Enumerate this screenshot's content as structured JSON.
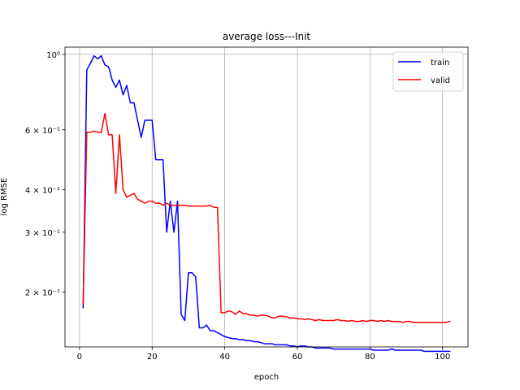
{
  "chart_data": {
    "type": "line",
    "title": "average loss---Init",
    "xlabel": "epoch",
    "ylabel": "log RMSE",
    "yscale": "log",
    "xlim": [
      -4,
      107
    ],
    "ylim": [
      0.138,
      1.05
    ],
    "grid": "vertical and horizontal at major ticks",
    "legend_position": "top-right",
    "xticks": [
      0,
      20,
      40,
      60,
      80,
      100
    ],
    "xtick_labels": [
      "0",
      "20",
      "40",
      "60",
      "80",
      "100"
    ],
    "yticks": [
      0.2,
      0.3,
      0.4,
      0.6,
      1.0
    ],
    "ytick_labels": [
      "2 × 10⁻¹",
      "3 × 10⁻¹",
      "4 × 10⁻¹",
      "6 × 10⁻¹",
      "10⁰"
    ],
    "series": [
      {
        "name": "train",
        "color": "#0000ff",
        "x": [
          1,
          2,
          3,
          4,
          5,
          6,
          7,
          8,
          9,
          10,
          11,
          12,
          13,
          14,
          15,
          16,
          17,
          18,
          19,
          20,
          21,
          22,
          23,
          24,
          25,
          26,
          27,
          28,
          29,
          30,
          31,
          32,
          33,
          34,
          35,
          36,
          37,
          38,
          39,
          40,
          41,
          42,
          43,
          44,
          45,
          46,
          47,
          48,
          49,
          50,
          51,
          52,
          53,
          54,
          55,
          56,
          57,
          58,
          59,
          60,
          61,
          62,
          63,
          64,
          65,
          66,
          67,
          68,
          69,
          70,
          71,
          72,
          73,
          74,
          75,
          76,
          77,
          78,
          79,
          80,
          81,
          82,
          83,
          84,
          85,
          86,
          87,
          88,
          89,
          90,
          91,
          92,
          93,
          94,
          95,
          96,
          97,
          98,
          99,
          100,
          101,
          102
        ],
        "y": [
          0.18,
          0.9,
          0.94,
          0.99,
          0.97,
          0.99,
          0.93,
          0.92,
          0.84,
          0.8,
          0.84,
          0.76,
          0.81,
          0.72,
          0.72,
          0.64,
          0.57,
          0.64,
          0.64,
          0.64,
          0.49,
          0.49,
          0.49,
          0.3,
          0.37,
          0.3,
          0.37,
          0.172,
          0.165,
          0.228,
          0.228,
          0.222,
          0.157,
          0.157,
          0.16,
          0.154,
          0.154,
          0.152,
          0.15,
          0.148,
          0.147,
          0.146,
          0.146,
          0.145,
          0.145,
          0.144,
          0.144,
          0.143,
          0.143,
          0.142,
          0.141,
          0.141,
          0.141,
          0.14,
          0.14,
          0.14,
          0.14,
          0.139,
          0.139,
          0.138,
          0.139,
          0.139,
          0.138,
          0.138,
          0.137,
          0.137,
          0.137,
          0.137,
          0.137,
          0.136,
          0.136,
          0.136,
          0.136,
          0.136,
          0.136,
          0.136,
          0.136,
          0.136,
          0.136,
          0.136,
          0.135,
          0.135,
          0.135,
          0.135,
          0.135,
          0.136,
          0.135,
          0.135,
          0.135,
          0.135,
          0.135,
          0.135,
          0.135,
          0.135,
          0.134,
          0.134,
          0.134,
          0.134,
          0.134,
          0.134,
          0.134,
          0.134
        ]
      },
      {
        "name": "valid",
        "color": "#ff0000",
        "x": [
          1,
          2,
          3,
          4,
          5,
          6,
          7,
          8,
          9,
          10,
          11,
          12,
          13,
          14,
          15,
          16,
          17,
          18,
          19,
          20,
          21,
          22,
          23,
          24,
          25,
          26,
          27,
          28,
          29,
          30,
          31,
          32,
          33,
          34,
          35,
          36,
          37,
          38,
          39,
          40,
          41,
          42,
          43,
          44,
          45,
          46,
          47,
          48,
          49,
          50,
          51,
          52,
          53,
          54,
          55,
          56,
          57,
          58,
          59,
          60,
          61,
          62,
          63,
          64,
          65,
          66,
          67,
          68,
          69,
          70,
          71,
          72,
          73,
          74,
          75,
          76,
          77,
          78,
          79,
          80,
          81,
          82,
          83,
          84,
          85,
          86,
          87,
          88,
          89,
          90,
          91,
          92,
          93,
          94,
          95,
          96,
          97,
          98,
          99,
          100,
          101,
          102
        ],
        "y": [
          0.185,
          0.59,
          0.59,
          0.595,
          0.59,
          0.59,
          0.67,
          0.58,
          0.58,
          0.39,
          0.58,
          0.4,
          0.38,
          0.385,
          0.39,
          0.375,
          0.37,
          0.365,
          0.37,
          0.37,
          0.365,
          0.365,
          0.36,
          0.365,
          0.36,
          0.36,
          0.36,
          0.36,
          0.36,
          0.358,
          0.358,
          0.358,
          0.358,
          0.358,
          0.358,
          0.36,
          0.355,
          0.355,
          0.174,
          0.174,
          0.176,
          0.175,
          0.172,
          0.176,
          0.173,
          0.173,
          0.171,
          0.171,
          0.17,
          0.171,
          0.171,
          0.17,
          0.168,
          0.168,
          0.17,
          0.17,
          0.169,
          0.168,
          0.168,
          0.167,
          0.167,
          0.166,
          0.167,
          0.166,
          0.165,
          0.166,
          0.165,
          0.165,
          0.165,
          0.165,
          0.166,
          0.165,
          0.165,
          0.164,
          0.165,
          0.164,
          0.164,
          0.165,
          0.164,
          0.165,
          0.165,
          0.164,
          0.165,
          0.164,
          0.165,
          0.164,
          0.164,
          0.164,
          0.163,
          0.164,
          0.164,
          0.163,
          0.163,
          0.163,
          0.163,
          0.163,
          0.163,
          0.163,
          0.163,
          0.163,
          0.163,
          0.164
        ]
      }
    ]
  }
}
